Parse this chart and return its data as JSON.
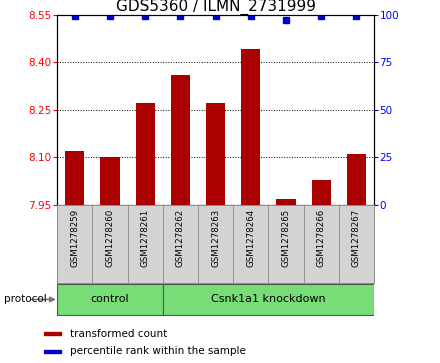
{
  "title": "GDS5360 / ILMN_2731999",
  "samples": [
    "GSM1278259",
    "GSM1278260",
    "GSM1278261",
    "GSM1278262",
    "GSM1278263",
    "GSM1278264",
    "GSM1278265",
    "GSM1278266",
    "GSM1278267"
  ],
  "bar_values": [
    8.12,
    8.1,
    8.27,
    8.36,
    8.27,
    8.44,
    7.97,
    8.03,
    8.11
  ],
  "percentile_values": [
    99,
    99,
    99,
    99,
    99,
    99,
    97,
    99,
    99
  ],
  "bar_color": "#AA0000",
  "dot_color": "#0000CC",
  "ylim_left": [
    7.95,
    8.55
  ],
  "ylim_right": [
    0,
    100
  ],
  "yticks_left": [
    7.95,
    8.1,
    8.25,
    8.4,
    8.55
  ],
  "yticks_right": [
    0,
    25,
    50,
    75,
    100
  ],
  "grid_lines": [
    8.1,
    8.25,
    8.4
  ],
  "control_n": 3,
  "knockdown_n": 6,
  "control_label": "control",
  "knockdown_label": "Csnk1a1 knockdown",
  "protocol_label": "protocol",
  "legend_bar_label": "transformed count",
  "legend_dot_label": "percentile rank within the sample",
  "bg_color": "#D3D3D3",
  "plot_bg": "#FFFFFF",
  "green_color": "#77DD77",
  "title_fontsize": 11,
  "tick_fontsize": 7.5,
  "label_fontsize": 8
}
